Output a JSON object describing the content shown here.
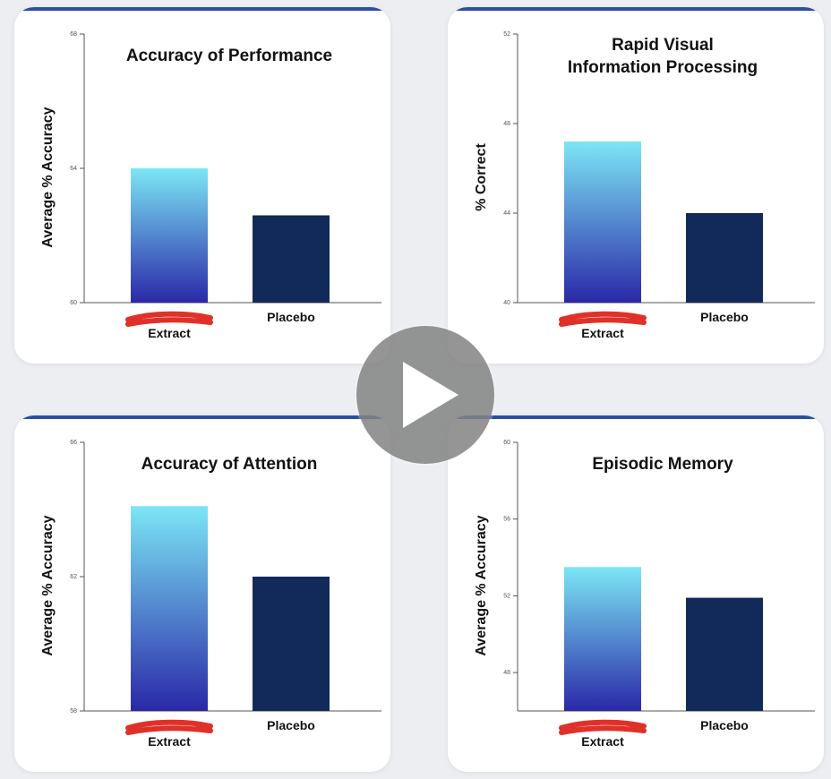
{
  "colors": {
    "accent_bar": "#2a4fa3",
    "placebo_bar": "#122a5a",
    "gradient_top": "#7ce6f5",
    "gradient_bottom": "#2a28a8",
    "redaction": "#e0302a"
  },
  "chart_data": [
    {
      "type": "bar",
      "title": [
        "Accuracy of Performance"
      ],
      "ylabel": "Average % Accuracy",
      "ylim": [
        60,
        68
      ],
      "yticks": [
        60,
        64,
        68
      ],
      "categories": [
        [
          "Extract"
        ],
        [
          "Placebo"
        ]
      ],
      "values": [
        64.0,
        62.6
      ]
    },
    {
      "type": "bar",
      "title": [
        "Rapid Visual",
        "Information Processing"
      ],
      "ylabel": "% Correct",
      "ylim": [
        40,
        52
      ],
      "yticks": [
        40,
        44,
        48,
        52
      ],
      "categories": [
        [
          "Extract"
        ],
        [
          "Placebo"
        ]
      ],
      "values": [
        47.2,
        44.0
      ]
    },
    {
      "type": "bar",
      "title": [
        "Accuracy of Attention"
      ],
      "ylabel": "Average % Accuracy",
      "ylim": [
        58,
        66
      ],
      "yticks": [
        58,
        62,
        66
      ],
      "categories": [
        [
          "Extract"
        ],
        [
          "Placebo"
        ]
      ],
      "values": [
        64.1,
        62.0
      ]
    },
    {
      "type": "bar",
      "title": [
        "Episodic Memory"
      ],
      "ylabel": "Average % Accuracy",
      "ylim": [
        46,
        60
      ],
      "yticks": [
        48,
        52,
        56,
        60
      ],
      "categories": [
        [
          "Extract"
        ],
        [
          "Placebo"
        ]
      ],
      "values": [
        53.5,
        51.9
      ]
    }
  ],
  "player": {
    "icon": "play-icon"
  }
}
